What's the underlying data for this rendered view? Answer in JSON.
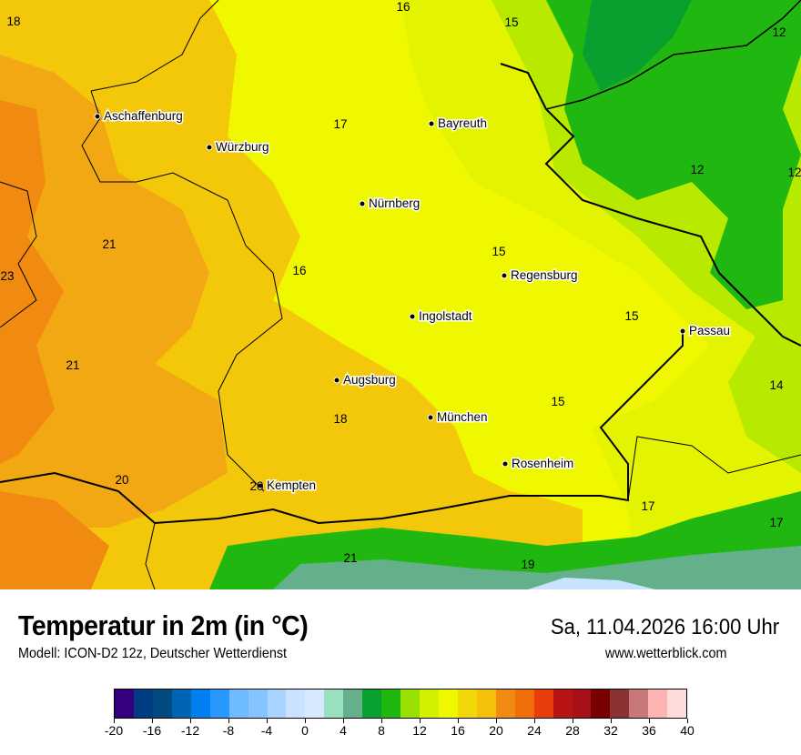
{
  "header": {
    "title": "Temperatur in 2m (in °C)",
    "subtitle": "Modell: ICON-D2 12z, Deutscher Wetterdienst",
    "datetime": "Sa, 11.04.2026 16:00 Uhr",
    "website": "www.wetterblick.com"
  },
  "map": {
    "cities": [
      "Aschaffenburg",
      "Würzburg",
      "Bayreuth",
      "Nürnberg",
      "Regensburg",
      "Ingolstadt",
      "Passau",
      "Augsburg",
      "München",
      "Rosenheim",
      "Kempten"
    ],
    "temperature_labels": [
      "18",
      "16",
      "15",
      "12",
      "17",
      "12",
      "12",
      "21",
      "15",
      "23",
      "16",
      "15",
      "21",
      "14",
      "15",
      "18",
      "20",
      "20",
      "17",
      "17",
      "21",
      "19"
    ]
  },
  "legend": {
    "ticks": [
      "-20",
      "-16",
      "-12",
      "-8",
      "-4",
      "0",
      "4",
      "8",
      "12",
      "16",
      "20",
      "24",
      "28",
      "32",
      "36",
      "40"
    ],
    "colors": [
      "#340080",
      "#003c80",
      "#004a80",
      "#0064b4",
      "#0080f0",
      "#2898ff",
      "#6ebcff",
      "#86c4ff",
      "#a8d4ff",
      "#c8e2ff",
      "#d8e8ff",
      "#98e0c0",
      "#64b08a",
      "#08a030",
      "#20b810",
      "#98e000",
      "#d2f000",
      "#f0f800",
      "#f2d80a",
      "#f4c00a",
      "#f08a10",
      "#f06e0a",
      "#e83c0a",
      "#b81414",
      "#a81018",
      "#780000",
      "#8c3232",
      "#c87878",
      "#ffb4b4",
      "#ffdcdc"
    ]
  }
}
